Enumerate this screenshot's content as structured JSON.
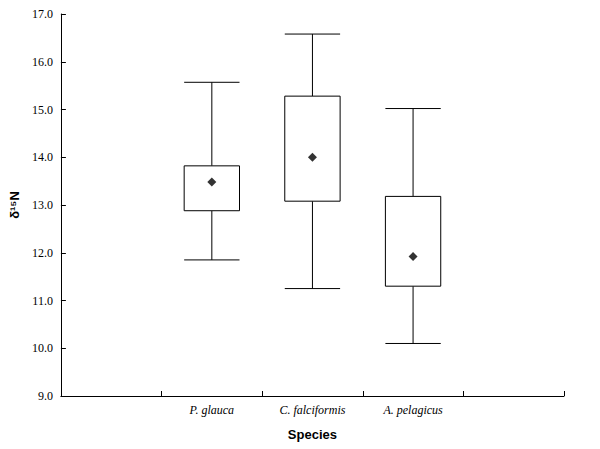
{
  "chart_data": {
    "type": "boxplot",
    "x_label": "Species",
    "y_label": "δ¹⁵N",
    "categories": [
      null,
      "P. glauca",
      "C. falciformis",
      "A. pelagicus",
      null
    ],
    "min": [
      null,
      11.85,
      11.25,
      10.1,
      null
    ],
    "q1": [
      null,
      12.88,
      13.08,
      11.3,
      null
    ],
    "median": [
      null,
      13.48,
      14.0,
      11.92,
      null
    ],
    "q3": [
      null,
      13.82,
      15.28,
      13.18,
      null
    ],
    "max": [
      null,
      15.57,
      16.58,
      15.02,
      null
    ],
    "ylim": [
      9,
      17
    ],
    "yticks": [
      {
        "value": 9,
        "label": "9.0"
      },
      {
        "value": 10,
        "label": "10.0"
      },
      {
        "value": 11,
        "label": "11.0"
      },
      {
        "value": 12,
        "label": "12.0"
      },
      {
        "value": 13,
        "label": "13.0"
      },
      {
        "value": 14,
        "label": "14.0"
      },
      {
        "value": 15,
        "label": "15.0"
      },
      {
        "value": 16,
        "label": "16.0"
      },
      {
        "value": 17,
        "label": "17.0"
      }
    ],
    "grid": false,
    "color": "#000000",
    "marker": "diamond"
  }
}
